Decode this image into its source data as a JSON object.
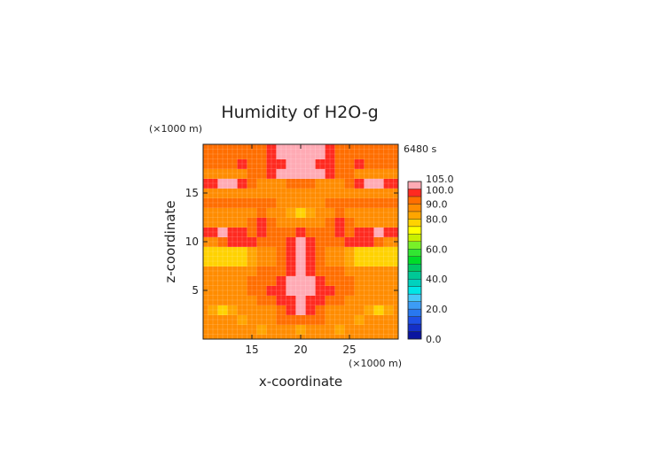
{
  "chart_data": {
    "type": "heatmap",
    "title": "Humidity of H2O-g",
    "time_label": "6480 s",
    "xlabel": "x-coordinate",
    "ylabel": "z-coordinate",
    "x_unit": "(×1000 m)",
    "y_unit": "(×1000 m)",
    "xlim": [
      10,
      30
    ],
    "ylim": [
      0,
      20
    ],
    "x_ticks": [
      15,
      20,
      25
    ],
    "y_ticks": [
      5,
      10,
      15
    ],
    "grid": true,
    "colorbar": {
      "levels": [
        0,
        5,
        10,
        15,
        20,
        25,
        30,
        35,
        40,
        45,
        50,
        55,
        60,
        65,
        70,
        75,
        80,
        85,
        90,
        95,
        100,
        105
      ],
      "colors": [
        "#0a14a0",
        "#1430c8",
        "#1e50e6",
        "#2878f0",
        "#3c9cf5",
        "#46c8f8",
        "#00e6e6",
        "#00d2be",
        "#00c896",
        "#00c864",
        "#00dc28",
        "#32e632",
        "#78f028",
        "#c8f000",
        "#ffff00",
        "#ffd200",
        "#ffa500",
        "#ff8c00",
        "#ff6e00",
        "#ff2a20",
        "#ffaab4"
      ],
      "tick_labels": [
        "0.0",
        "20.0",
        "40.0",
        "60.0",
        "80.0",
        "90.0",
        "100.0",
        "105.0"
      ],
      "tick_values": [
        0,
        20,
        40,
        60,
        80,
        90,
        100,
        105
      ]
    },
    "field": {
      "x": [
        10,
        11,
        12,
        13,
        14,
        15,
        16,
        17,
        18,
        19,
        20,
        21,
        22,
        23,
        24,
        25,
        26,
        27,
        28,
        29,
        30
      ],
      "z": [
        0,
        1,
        2,
        3,
        4,
        5,
        6,
        7,
        8,
        9,
        10,
        11,
        12,
        13,
        14,
        15,
        16,
        17,
        18,
        19,
        20
      ],
      "values": [
        [
          86,
          86,
          86,
          86,
          86,
          86,
          86,
          86,
          86,
          86,
          86,
          86,
          86,
          86,
          86,
          86,
          86,
          86,
          86,
          86,
          86
        ],
        [
          86,
          86,
          86,
          86,
          88,
          86,
          82,
          86,
          88,
          86,
          84,
          86,
          88,
          86,
          82,
          86,
          88,
          86,
          86,
          86,
          86
        ],
        [
          86,
          86,
          88,
          86,
          84,
          86,
          88,
          86,
          92,
          94,
          94,
          94,
          92,
          86,
          88,
          86,
          84,
          86,
          88,
          86,
          86
        ],
        [
          86,
          82,
          78,
          82,
          86,
          88,
          86,
          88,
          92,
          96,
          102,
          96,
          92,
          88,
          86,
          88,
          86,
          82,
          78,
          82,
          86
        ],
        [
          88,
          86,
          86,
          86,
          88,
          88,
          92,
          94,
          96,
          98,
          102,
          98,
          96,
          94,
          92,
          88,
          88,
          86,
          86,
          86,
          88
        ],
        [
          86,
          86,
          86,
          88,
          88,
          92,
          94,
          96,
          98,
          102,
          102,
          102,
          98,
          96,
          94,
          92,
          88,
          88,
          86,
          86,
          86
        ],
        [
          86,
          86,
          86,
          88,
          88,
          90,
          92,
          94,
          96,
          102,
          102,
          102,
          96,
          94,
          92,
          90,
          88,
          88,
          86,
          86,
          86
        ],
        [
          86,
          86,
          88,
          86,
          86,
          88,
          90,
          92,
          94,
          98,
          102,
          98,
          94,
          92,
          90,
          88,
          86,
          86,
          88,
          86,
          86
        ],
        [
          76,
          76,
          76,
          76,
          78,
          82,
          86,
          88,
          92,
          96,
          102,
          96,
          92,
          88,
          86,
          82,
          78,
          76,
          76,
          76,
          76
        ],
        [
          76,
          76,
          76,
          76,
          78,
          82,
          86,
          88,
          92,
          96,
          102,
          96,
          92,
          88,
          86,
          82,
          78,
          76,
          76,
          76,
          76
        ],
        [
          86,
          88,
          92,
          96,
          98,
          96,
          94,
          92,
          94,
          96,
          102,
          96,
          94,
          92,
          94,
          96,
          98,
          96,
          92,
          88,
          86
        ],
        [
          96,
          98,
          102,
          98,
          96,
          94,
          96,
          94,
          94,
          94,
          96,
          94,
          94,
          94,
          96,
          94,
          96,
          98,
          102,
          98,
          96
        ],
        [
          88,
          88,
          88,
          86,
          88,
          92,
          96,
          90,
          88,
          86,
          86,
          86,
          88,
          90,
          96,
          92,
          88,
          86,
          88,
          88,
          88
        ],
        [
          86,
          86,
          86,
          88,
          86,
          88,
          90,
          88,
          86,
          80,
          76,
          80,
          86,
          88,
          90,
          88,
          86,
          88,
          86,
          86,
          86
        ],
        [
          94,
          94,
          94,
          94,
          94,
          94,
          92,
          90,
          86,
          88,
          88,
          88,
          86,
          90,
          92,
          94,
          94,
          94,
          94,
          94,
          94
        ],
        [
          88,
          88,
          88,
          88,
          88,
          86,
          86,
          86,
          88,
          88,
          88,
          88,
          88,
          86,
          86,
          86,
          88,
          88,
          88,
          88,
          88
        ],
        [
          98,
          98,
          102,
          102,
          98,
          94,
          88,
          86,
          88,
          90,
          92,
          90,
          88,
          86,
          88,
          94,
          98,
          102,
          102,
          98,
          98
        ],
        [
          88,
          88,
          88,
          88,
          88,
          92,
          94,
          98,
          102,
          102,
          102,
          102,
          102,
          98,
          94,
          92,
          88,
          88,
          88,
          88,
          88
        ],
        [
          94,
          94,
          94,
          94,
          96,
          94,
          94,
          96,
          98,
          100,
          100,
          100,
          98,
          96,
          94,
          94,
          96,
          94,
          94,
          94,
          94
        ],
        [
          94,
          94,
          94,
          94,
          94,
          94,
          94,
          96,
          102,
          102,
          102,
          102,
          102,
          96,
          94,
          94,
          94,
          94,
          94,
          94,
          94
        ],
        [
          94,
          94,
          94,
          94,
          94,
          94,
          94,
          96,
          102,
          102,
          102,
          102,
          102,
          96,
          94,
          94,
          94,
          94,
          94,
          94,
          94
        ]
      ]
    }
  }
}
